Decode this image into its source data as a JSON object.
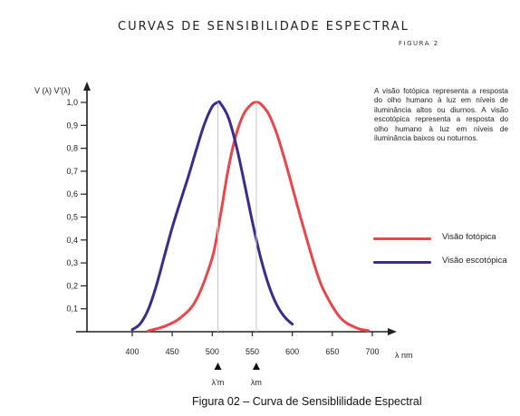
{
  "header": {
    "title": "CURVAS DE SENSIBILIDADE ESPECTRAL",
    "figure_label": "FIGURA 2"
  },
  "description": "A visão fotópica representa a resposta do olho humano à luz em níveis de iluminância altos ou diurnos. A visão escotópica representa a resposta do olho humano à luz em níveis de iluminância baixos ou noturnos.",
  "caption": "Figura 02 – Curva de Sensiblilidade Espectral",
  "chart_data": {
    "type": "line",
    "ylabel": "V (λ) V'(λ)",
    "xlabel": "λ nm",
    "xlim": [
      400,
      700
    ],
    "ylim": [
      0,
      1.0
    ],
    "x_ticks": [
      "400",
      "450",
      "500",
      "550",
      "600",
      "650",
      "700"
    ],
    "y_ticks": [
      "0,1",
      "0,2",
      "0,3",
      "0,4",
      "0,5",
      "0,6",
      "0,7",
      "0,8",
      "0,9",
      "1,0"
    ],
    "grid": false,
    "legend_position": "right",
    "series": [
      {
        "name": "Visão fotópica",
        "color": "#e8464a",
        "x": [
          420,
          440,
          460,
          480,
          500,
          510,
          520,
          530,
          540,
          550,
          555,
          560,
          570,
          580,
          590,
          600,
          610,
          620,
          630,
          640,
          660,
          680,
          695
        ],
        "y": [
          0.004,
          0.023,
          0.06,
          0.139,
          0.323,
          0.503,
          0.71,
          0.862,
          0.954,
          0.995,
          1.0,
          0.995,
          0.952,
          0.87,
          0.757,
          0.631,
          0.503,
          0.381,
          0.265,
          0.175,
          0.061,
          0.017,
          0.005
        ]
      },
      {
        "name": "Visão escotópica",
        "color": "#3d2a8c",
        "x": [
          400,
          410,
          420,
          430,
          440,
          450,
          460,
          470,
          480,
          490,
          500,
          507,
          510,
          520,
          530,
          540,
          550,
          560,
          570,
          580,
          590,
          600
        ],
        "y": [
          0.009,
          0.035,
          0.097,
          0.2,
          0.328,
          0.455,
          0.567,
          0.676,
          0.793,
          0.904,
          0.982,
          1.0,
          0.997,
          0.935,
          0.811,
          0.65,
          0.481,
          0.329,
          0.208,
          0.121,
          0.066,
          0.033
        ]
      }
    ],
    "markers": [
      {
        "x": 507,
        "label": "λ'm"
      },
      {
        "x": 555,
        "label": "λm"
      }
    ]
  }
}
